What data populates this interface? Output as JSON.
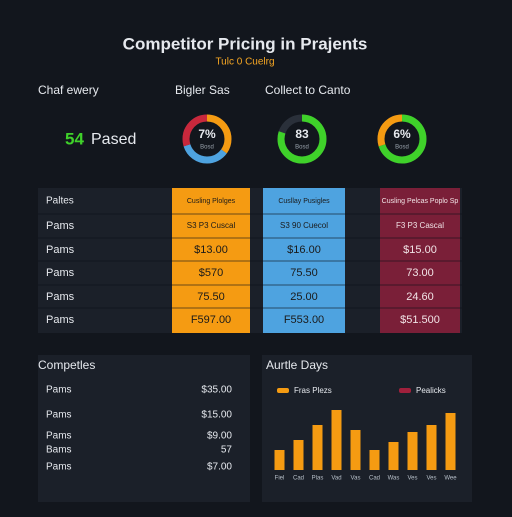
{
  "header": {
    "title": "Competitor Pricing in Prajents",
    "subtitle": "Tulc 0 Cuelrg"
  },
  "summary": {
    "labels": [
      "Chaf ewery",
      "Bigler Sas",
      "Collect to Canto"
    ],
    "count": "54",
    "count_label": "Pased"
  },
  "donuts": [
    {
      "label": "7%",
      "sub": "Bosd",
      "segments": [
        {
          "value": 35,
          "color": "#f59b12"
        },
        {
          "value": 35,
          "color": "#4ea3e0"
        },
        {
          "value": 30,
          "color": "#c8283c"
        }
      ]
    },
    {
      "label": "83",
      "sub": "Bosd",
      "segments": [
        {
          "value": 80,
          "color": "#3fd12a"
        }
      ]
    },
    {
      "label": "6%",
      "sub": "Bosd",
      "segments": [
        {
          "value": 70,
          "color": "#3fd12a"
        },
        {
          "value": 30,
          "color": "#f59b12"
        }
      ]
    }
  ],
  "table": {
    "header": [
      "Paltes",
      "Cusling Plolges",
      "Cusllay Pusigles",
      "Cusling Pelcas Poplo Sp"
    ],
    "rows": [
      [
        "Pams",
        "S3 P3 Cuscal",
        "S3 90 Cuecol",
        "F3 P3 Cascal"
      ],
      [
        "Pams",
        "$13.00",
        "$16.00",
        "$15.00"
      ],
      [
        "Pams",
        "$570",
        "75.50",
        "73.00"
      ],
      [
        "Pams",
        "75.50",
        "25.00",
        "24.60"
      ],
      [
        "Pams",
        "F597.00",
        "F553.00",
        "$51.500"
      ]
    ]
  },
  "list": {
    "title": "Competles",
    "rows": [
      [
        "Pams",
        "$35.00"
      ],
      [
        "Pams",
        "$15.00"
      ],
      [
        "Pams",
        "$9.00"
      ],
      [
        "Bams",
        "57"
      ],
      [
        "Pams",
        "$7.00"
      ]
    ]
  },
  "chart": {
    "type": "bar",
    "title": "Aurtle Days",
    "legend": [
      {
        "name": "Fras Plezs",
        "color": "#f59b12"
      },
      {
        "name": "Pealicks",
        "color": "#a0203c"
      }
    ],
    "categories": [
      "Fiel",
      "Cad",
      "Plas",
      "Vad",
      "Vas",
      "Cad",
      "Was",
      "Ves",
      "Ves",
      "Wee"
    ],
    "values": [
      20,
      30,
      45,
      60,
      40,
      20,
      28,
      38,
      45,
      57
    ],
    "color": "#f59b12",
    "ylim": [
      0,
      70
    ]
  }
}
